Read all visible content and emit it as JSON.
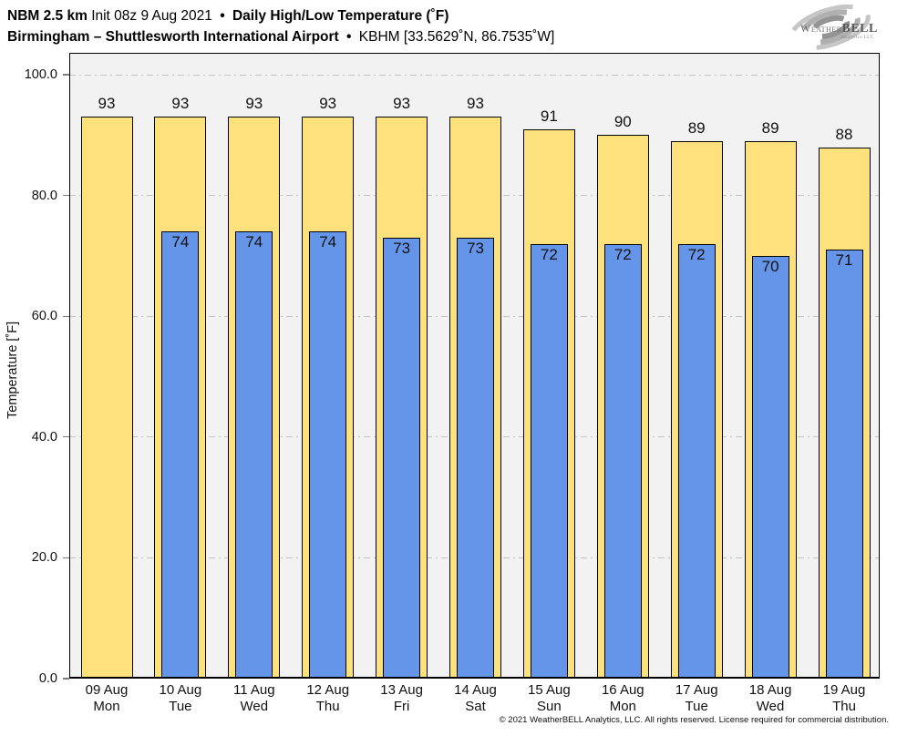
{
  "header": {
    "model": "NBM 2.5 km",
    "init": "Init 08z 9 Aug 2021",
    "bullet": "•",
    "product": "Daily High/Low Temperature (˚F)",
    "station": "Birmingham – Shuttlesworth International Airport",
    "station_id": "KBHM [33.5629˚N, 86.7535˚W]"
  },
  "logo": {
    "text_weather": "Weather",
    "text_bell": "BELL",
    "text_sub": "Analytics LLC"
  },
  "chart_data": {
    "type": "bar",
    "title": "Daily High/Low Temperature (˚F)",
    "ylabel": "Temperature [˚F]",
    "ylim": [
      0,
      100
    ],
    "yticks": [
      0,
      20,
      40,
      60,
      80,
      100
    ],
    "ytick_labels": [
      "0.0",
      "20.0",
      "40.0",
      "60.0",
      "80.0",
      "100.0"
    ],
    "grid": "horizontal dash-dot",
    "legend_position": "none",
    "plot_background": "#f2f2f2",
    "categories": [
      {
        "date": "09 Aug",
        "day": "Mon"
      },
      {
        "date": "10 Aug",
        "day": "Tue"
      },
      {
        "date": "11 Aug",
        "day": "Wed"
      },
      {
        "date": "12 Aug",
        "day": "Thu"
      },
      {
        "date": "13 Aug",
        "day": "Fri"
      },
      {
        "date": "14 Aug",
        "day": "Sat"
      },
      {
        "date": "15 Aug",
        "day": "Sun"
      },
      {
        "date": "16 Aug",
        "day": "Mon"
      },
      {
        "date": "17 Aug",
        "day": "Tue"
      },
      {
        "date": "18 Aug",
        "day": "Wed"
      },
      {
        "date": "19 Aug",
        "day": "Thu"
      }
    ],
    "series": [
      {
        "name": "Daily High",
        "color": "#fde17c",
        "outline": "#000000",
        "values": [
          93,
          93,
          93,
          93,
          93,
          93,
          91,
          90,
          89,
          89,
          88
        ]
      },
      {
        "name": "Daily Low",
        "color": "#6495e9",
        "outline": "#000000",
        "values": [
          null,
          74,
          74,
          74,
          73,
          73,
          72,
          72,
          72,
          70,
          71
        ]
      }
    ]
  },
  "footer": {
    "copyright": "© 2021 WeatherBELL Analytics, LLC. All rights reserved. License required for commercial distribution."
  }
}
